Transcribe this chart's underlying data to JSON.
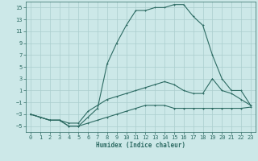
{
  "xlabel": "Humidex (Indice chaleur)",
  "bg_color": "#cce8e8",
  "line_color": "#2d6b63",
  "grid_color": "#aacece",
  "xlim": [
    -0.5,
    23.5
  ],
  "ylim": [
    -6,
    16
  ],
  "xticks": [
    0,
    1,
    2,
    3,
    4,
    5,
    6,
    7,
    8,
    9,
    10,
    11,
    12,
    13,
    14,
    15,
    16,
    17,
    18,
    19,
    20,
    21,
    22,
    23
  ],
  "yticks": [
    -5,
    -3,
    -1,
    1,
    3,
    5,
    7,
    9,
    11,
    13,
    15
  ],
  "curve_top_x": [
    0,
    2,
    3,
    4,
    5,
    6,
    7,
    8,
    9,
    10,
    11,
    12,
    13,
    14,
    15,
    16,
    17,
    18,
    19,
    20,
    21,
    22,
    23
  ],
  "curve_top_y": [
    -3,
    -4,
    -4,
    -5,
    -5,
    -3.5,
    -2,
    5.5,
    9,
    12,
    14.5,
    14.5,
    15,
    15,
    15.5,
    15.5,
    13.5,
    12,
    7,
    3,
    1,
    1,
    -1.5
  ],
  "curve_mid_x": [
    0,
    1,
    2,
    3,
    4,
    5,
    6,
    7,
    8,
    9,
    10,
    11,
    12,
    13,
    14,
    15,
    16,
    17,
    18,
    19,
    20,
    21,
    22,
    23
  ],
  "curve_mid_y": [
    -3,
    -3.5,
    -4,
    -4,
    -4.5,
    -4.5,
    -2.5,
    -1.5,
    -0.5,
    0,
    0.5,
    1,
    1.5,
    2,
    2.5,
    2,
    1,
    0.5,
    0.5,
    3,
    1,
    0.5,
    -0.5,
    -1.5
  ],
  "curve_bot_x": [
    0,
    1,
    2,
    3,
    4,
    5,
    6,
    7,
    8,
    9,
    10,
    11,
    12,
    13,
    14,
    15,
    16,
    17,
    18,
    19,
    20,
    21,
    22,
    23
  ],
  "curve_bot_y": [
    -3,
    -3.5,
    -4,
    -4,
    -5,
    -5,
    -4.5,
    -4,
    -3.5,
    -3,
    -2.5,
    -2,
    -1.5,
    -1.5,
    -1.5,
    -2,
    -2,
    -2,
    -2,
    -2,
    -2,
    -2,
    -2,
    -1.8
  ]
}
